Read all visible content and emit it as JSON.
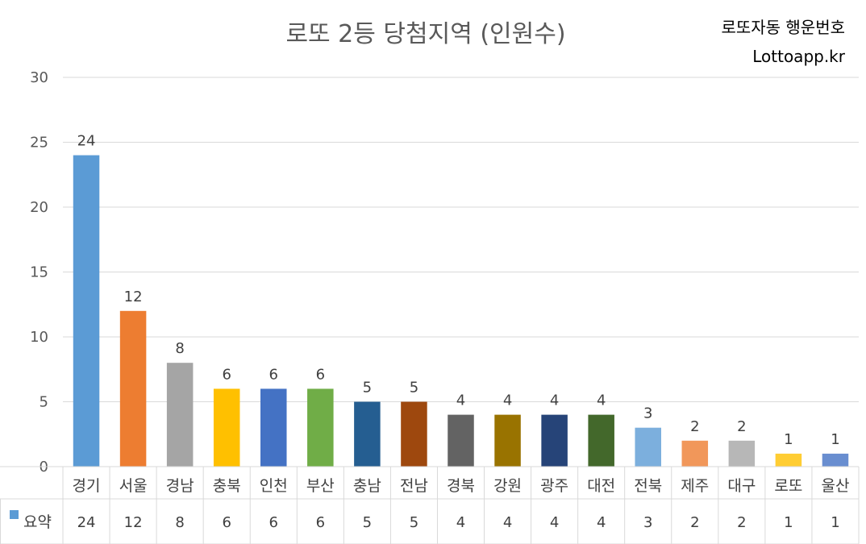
{
  "chart_data": {
    "type": "bar",
    "title": "로또 2등 당첨지역 (인원수)",
    "brand_line1": "로또자동 행운번호",
    "brand_line2": "Lottoapp.kr",
    "ylim": [
      0,
      30
    ],
    "yticks": [
      0,
      5,
      10,
      15,
      20,
      25,
      30
    ],
    "grid": true,
    "legend_position": "bottom-left (data table)",
    "categories": [
      "경기",
      "서울",
      "경남",
      "충북",
      "인천",
      "부산",
      "충남",
      "전남",
      "경북",
      "강원",
      "광주",
      "대전",
      "전북",
      "제주",
      "대구",
      "로또",
      "울산"
    ],
    "series": [
      {
        "name": "요약",
        "values": [
          24,
          12,
          8,
          6,
          6,
          6,
          5,
          5,
          4,
          4,
          4,
          4,
          3,
          2,
          2,
          1,
          1
        ]
      }
    ],
    "colors": [
      "#5B9BD5",
      "#ED7D31",
      "#A5A5A5",
      "#FFC000",
      "#4472C4",
      "#70AD47",
      "#255E91",
      "#9E480E",
      "#636363",
      "#997300",
      "#264478",
      "#43682B",
      "#7CAFDD",
      "#F1975A",
      "#B7B7B7",
      "#FFCD33",
      "#698ED0"
    ],
    "legend_swatch_color": "#5B9BD5"
  }
}
